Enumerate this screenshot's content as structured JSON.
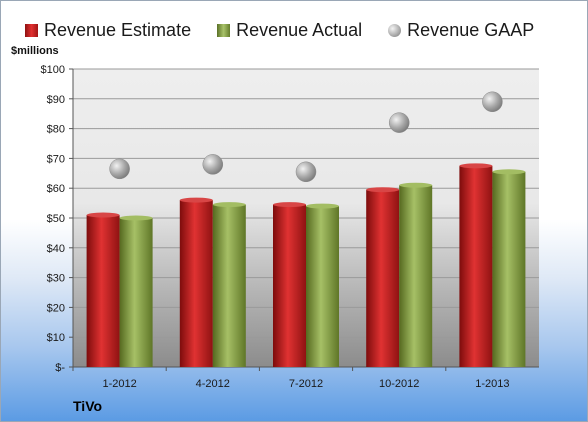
{
  "chart_data": {
    "type": "bar",
    "categories": [
      "1-2012",
      "4-2012",
      "7-2012",
      "10-2012",
      "1-2013"
    ],
    "series": [
      {
        "name": "Revenue Estimate",
        "type": "bar",
        "color": "#c01a1a",
        "values": [
          51,
          56,
          54.5,
          59.5,
          67.5
        ]
      },
      {
        "name": "Revenue Actual",
        "type": "bar",
        "color": "#8aa348",
        "values": [
          50,
          54.5,
          54,
          61,
          65.5
        ]
      },
      {
        "name": "Revenue GAAP",
        "type": "scatter",
        "color": "#a8a8a8",
        "values": [
          66.5,
          68,
          65.5,
          82,
          89
        ]
      }
    ],
    "ylabel": "$millions",
    "ylim": [
      0,
      100
    ],
    "yticks": [
      0,
      10,
      20,
      30,
      40,
      50,
      60,
      70,
      80,
      90,
      100
    ],
    "ytick_labels": [
      "$-",
      "$10",
      "$20",
      "$30",
      "$40",
      "$50",
      "$60",
      "$70",
      "$80",
      "$90",
      "$100"
    ],
    "legend_position": "top",
    "grid": true
  },
  "company": "TiVo"
}
